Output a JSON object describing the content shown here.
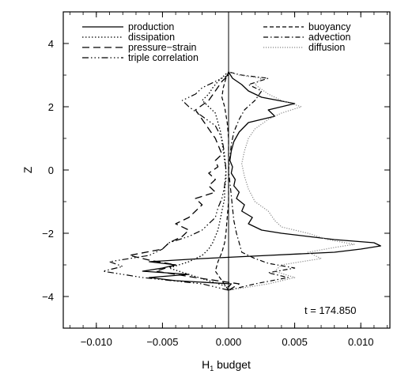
{
  "chart_data": {
    "type": "line",
    "xlabel": "H",
    "xlabel_sub": "1",
    "xlabel_rest": " budget",
    "ylabel": "Z",
    "xlim": [
      -0.0125,
      0.0122
    ],
    "ylim": [
      -5,
      5
    ],
    "xticks": [
      -0.01,
      -0.005,
      0.0,
      0.005,
      0.01
    ],
    "xtick_labels": [
      "−0.010",
      "−0.005",
      "0.000",
      "0.005",
      "0.010"
    ],
    "yticks": [
      -4,
      -2,
      0,
      2,
      4
    ],
    "ytick_labels": [
      "−4",
      "−2",
      "0",
      "2",
      "4"
    ],
    "annotation": "t = 174.850",
    "legend_left": [
      "production",
      "dissipation",
      "pressure−strain",
      "triple correlation"
    ],
    "legend_right": [
      "buoyancy",
      "advection",
      "diffusion"
    ],
    "series": [
      {
        "name": "production",
        "dash": "",
        "color": "#000000",
        "width": 1.3,
        "points": [
          [
            0.0,
            -3.7
          ],
          [
            0.0002,
            -3.6
          ],
          [
            -0.004,
            -3.5
          ],
          [
            -0.006,
            -3.4
          ],
          [
            -0.003,
            -3.3
          ],
          [
            -0.0065,
            -3.2
          ],
          [
            -0.005,
            -3.1
          ],
          [
            -0.004,
            -3.0
          ],
          [
            -0.006,
            -2.9
          ],
          [
            -0.002,
            -2.8
          ],
          [
            0.003,
            -2.7
          ],
          [
            0.008,
            -2.6
          ],
          [
            0.01,
            -2.5
          ],
          [
            0.0115,
            -2.4
          ],
          [
            0.011,
            -2.3
          ],
          [
            0.008,
            -2.2
          ],
          [
            0.006,
            -2.1
          ],
          [
            0.004,
            -2.0
          ],
          [
            0.0025,
            -1.9
          ],
          [
            0.0015,
            -1.7
          ],
          [
            0.0018,
            -1.5
          ],
          [
            0.001,
            -1.3
          ],
          [
            0.0012,
            -1.1
          ],
          [
            0.0006,
            -0.9
          ],
          [
            0.0008,
            -0.7
          ],
          [
            0.0004,
            -0.5
          ],
          [
            0.0005,
            -0.3
          ],
          [
            0.0002,
            -0.1
          ],
          [
            0.0003,
            0.1
          ],
          [
            0.0001,
            0.3
          ],
          [
            0.0002,
            0.6
          ],
          [
            0.0004,
            0.9
          ],
          [
            0.0008,
            1.2
          ],
          [
            0.0015,
            1.5
          ],
          [
            0.0035,
            1.7
          ],
          [
            0.003,
            1.9
          ],
          [
            0.005,
            2.1
          ],
          [
            0.0025,
            2.3
          ],
          [
            0.0015,
            2.5
          ],
          [
            0.001,
            2.7
          ],
          [
            0.0003,
            2.9
          ],
          [
            0.0,
            3.1
          ]
        ]
      },
      {
        "name": "dissipation",
        "dash": "1.5 2.5",
        "color": "#000000",
        "width": 1.3,
        "points": [
          [
            0.0,
            -3.7
          ],
          [
            -0.0015,
            -3.5
          ],
          [
            -0.003,
            -3.3
          ],
          [
            -0.0045,
            -3.1
          ],
          [
            -0.003,
            -2.9
          ],
          [
            -0.002,
            -2.7
          ],
          [
            -0.0015,
            -2.5
          ],
          [
            -0.0012,
            -2.3
          ],
          [
            -0.001,
            -2.1
          ],
          [
            -0.0008,
            -1.9
          ],
          [
            -0.0007,
            -1.7
          ],
          [
            -0.0006,
            -1.5
          ],
          [
            -0.0005,
            -1.3
          ],
          [
            -0.0004,
            -1.1
          ],
          [
            -0.0003,
            -0.9
          ],
          [
            -0.0003,
            -0.6
          ],
          [
            -0.0002,
            -0.3
          ],
          [
            -0.0002,
            0.0
          ],
          [
            -0.0003,
            0.3
          ],
          [
            -0.0004,
            0.6
          ],
          [
            -0.0005,
            0.9
          ],
          [
            -0.0006,
            1.2
          ],
          [
            -0.0008,
            1.5
          ],
          [
            -0.001,
            1.8
          ],
          [
            -0.0015,
            2.0
          ],
          [
            -0.002,
            2.2
          ],
          [
            -0.0015,
            2.4
          ],
          [
            -0.0012,
            2.6
          ],
          [
            -0.0008,
            2.8
          ],
          [
            -0.0003,
            3.0
          ],
          [
            0.0,
            3.1
          ]
        ]
      },
      {
        "name": "pressure−strain",
        "dash": "9 5",
        "color": "#000000",
        "width": 1.3,
        "points": [
          [
            0.0,
            -3.8
          ],
          [
            0.0008,
            -3.6
          ],
          [
            -0.0025,
            -3.4
          ],
          [
            -0.0055,
            -3.2
          ],
          [
            -0.004,
            -3.0
          ],
          [
            -0.006,
            -2.85
          ],
          [
            -0.0075,
            -2.7
          ],
          [
            -0.005,
            -2.5
          ],
          [
            -0.0045,
            -2.3
          ],
          [
            -0.0035,
            -2.1
          ],
          [
            -0.003,
            -1.9
          ],
          [
            -0.004,
            -1.7
          ],
          [
            -0.003,
            -1.5
          ],
          [
            -0.0025,
            -1.3
          ],
          [
            -0.002,
            -1.1
          ],
          [
            -0.0025,
            -0.9
          ],
          [
            -0.001,
            -0.7
          ],
          [
            -0.0015,
            -0.5
          ],
          [
            -0.001,
            -0.3
          ],
          [
            -0.0015,
            -0.1
          ],
          [
            -0.0008,
            0.1
          ],
          [
            -0.001,
            0.3
          ],
          [
            -0.0005,
            0.5
          ],
          [
            -0.0008,
            0.8
          ],
          [
            -0.001,
            1.0
          ],
          [
            -0.0015,
            1.3
          ],
          [
            -0.002,
            1.6
          ],
          [
            -0.0025,
            1.9
          ],
          [
            -0.0015,
            2.2
          ],
          [
            -0.001,
            2.5
          ],
          [
            -0.0005,
            2.8
          ],
          [
            0.0,
            3.0
          ]
        ]
      },
      {
        "name": "triple correlation",
        "dash": "8 3 1.5 3 1.5 3 1.5 3",
        "color": "#000000",
        "width": 1.2,
        "points": [
          [
            0.0,
            -3.8
          ],
          [
            -0.002,
            -3.6
          ],
          [
            -0.0065,
            -3.4
          ],
          [
            -0.0095,
            -3.2
          ],
          [
            -0.008,
            -3.05
          ],
          [
            -0.009,
            -2.9
          ],
          [
            -0.006,
            -2.7
          ],
          [
            -0.005,
            -2.5
          ],
          [
            -0.0045,
            -2.3
          ],
          [
            -0.003,
            -2.1
          ],
          [
            -0.002,
            -1.9
          ],
          [
            -0.0015,
            -1.7
          ],
          [
            -0.001,
            -1.5
          ],
          [
            -0.0008,
            -1.2
          ],
          [
            -0.0005,
            -0.9
          ],
          [
            -0.0003,
            -0.5
          ],
          [
            -0.0002,
            0.0
          ],
          [
            -0.0003,
            0.5
          ],
          [
            -0.0005,
            1.0
          ],
          [
            -0.001,
            1.4
          ],
          [
            -0.002,
            1.7
          ],
          [
            -0.003,
            2.0
          ],
          [
            -0.0035,
            2.2
          ],
          [
            -0.0025,
            2.4
          ],
          [
            -0.002,
            2.6
          ],
          [
            -0.001,
            2.8
          ],
          [
            0.0,
            3.0
          ]
        ]
      },
      {
        "name": "buoyancy",
        "dash": "5 3",
        "color": "#000000",
        "width": 1.2,
        "points": [
          [
            0.0,
            -3.8
          ],
          [
            -0.0005,
            -3.5
          ],
          [
            -0.001,
            -3.2
          ],
          [
            -0.0008,
            -2.9
          ],
          [
            -0.0005,
            -2.6
          ],
          [
            -0.0003,
            -2.3
          ],
          [
            -0.0002,
            -2.0
          ],
          [
            -0.0001,
            -1.5
          ],
          [
            0.0,
            -1.0
          ],
          [
            0.0,
            0.0
          ],
          [
            0.0,
            1.0
          ],
          [
            -0.0001,
            1.5
          ],
          [
            -0.0003,
            2.0
          ],
          [
            -0.0005,
            2.3
          ],
          [
            -0.0004,
            2.6
          ],
          [
            -0.0002,
            2.9
          ],
          [
            0.0,
            3.1
          ]
        ]
      },
      {
        "name": "advection",
        "dash": "6 3 1.5 3",
        "color": "#000000",
        "width": 1.2,
        "points": [
          [
            0.0,
            -3.8
          ],
          [
            0.002,
            -3.6
          ],
          [
            0.0045,
            -3.4
          ],
          [
            0.003,
            -3.25
          ],
          [
            0.005,
            -3.1
          ],
          [
            0.003,
            -2.95
          ],
          [
            0.002,
            -2.8
          ],
          [
            0.001,
            -2.6
          ],
          [
            0.0008,
            -2.3
          ],
          [
            0.0006,
            -2.0
          ],
          [
            0.0004,
            -1.6
          ],
          [
            0.0003,
            -1.2
          ],
          [
            0.0002,
            -0.8
          ],
          [
            0.0001,
            -0.4
          ],
          [
            0.0,
            0.0
          ],
          [
            0.0001,
            0.4
          ],
          [
            0.0002,
            0.8
          ],
          [
            0.0004,
            1.2
          ],
          [
            0.0008,
            1.6
          ],
          [
            0.0012,
            1.9
          ],
          [
            0.002,
            2.2
          ],
          [
            0.0025,
            2.5
          ],
          [
            0.0015,
            2.7
          ],
          [
            0.003,
            2.9
          ],
          [
            0.001,
            3.0
          ],
          [
            0.0,
            3.1
          ]
        ]
      },
      {
        "name": "diffusion",
        "dash": "1.2 1.8",
        "color": "#888888",
        "width": 1.2,
        "points": [
          [
            0.0,
            -3.8
          ],
          [
            0.003,
            -3.6
          ],
          [
            0.005,
            -3.4
          ],
          [
            0.0035,
            -3.2
          ],
          [
            0.004,
            -3.0
          ],
          [
            0.007,
            -2.8
          ],
          [
            0.006,
            -2.6
          ],
          [
            0.008,
            -2.45
          ],
          [
            0.0095,
            -2.35
          ],
          [
            0.0075,
            -2.2
          ],
          [
            0.006,
            -2.0
          ],
          [
            0.004,
            -1.8
          ],
          [
            0.0035,
            -1.6
          ],
          [
            0.003,
            -1.3
          ],
          [
            0.002,
            -1.0
          ],
          [
            0.0015,
            -0.6
          ],
          [
            0.0012,
            -0.2
          ],
          [
            0.001,
            0.2
          ],
          [
            0.0012,
            0.6
          ],
          [
            0.0015,
            1.0
          ],
          [
            0.002,
            1.3
          ],
          [
            0.003,
            1.6
          ],
          [
            0.004,
            1.8
          ],
          [
            0.0055,
            2.0
          ],
          [
            0.004,
            2.2
          ],
          [
            0.003,
            2.4
          ],
          [
            0.002,
            2.7
          ],
          [
            0.0025,
            2.9
          ],
          [
            0.0008,
            3.0
          ],
          [
            0.0,
            3.1
          ]
        ]
      }
    ]
  }
}
